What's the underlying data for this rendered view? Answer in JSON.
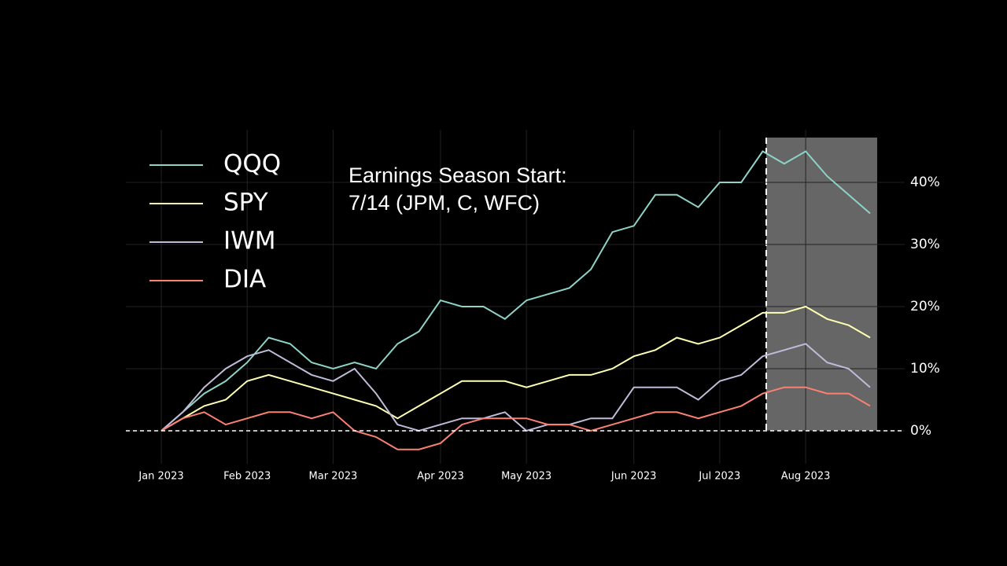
{
  "chart_data": {
    "type": "line",
    "annotation": [
      "Earnings Season Start:",
      "7/14 (JPM, C, WFC)"
    ],
    "categories": [
      "Jan 2023",
      null,
      null,
      null,
      "Feb 2023",
      null,
      null,
      null,
      "Mar 2023",
      null,
      null,
      null,
      null,
      "Apr 2023",
      null,
      null,
      null,
      "May 2023",
      null,
      null,
      null,
      null,
      "Jun 2023",
      null,
      null,
      null,
      "Jul 2023",
      null,
      null,
      null,
      "Aug 2023",
      null,
      null,
      null
    ],
    "series": [
      {
        "name": "QQQ",
        "color": "#8dd3c7",
        "values": [
          0,
          3,
          6,
          8,
          11,
          15,
          14,
          11,
          10,
          11,
          10,
          14,
          16,
          21,
          20,
          20,
          18,
          21,
          22,
          23,
          26,
          32,
          33,
          38,
          38,
          36,
          40,
          40,
          45,
          43,
          45,
          41,
          38,
          35
        ]
      },
      {
        "name": "SPY",
        "color": "#feffb3",
        "values": [
          0,
          2,
          4,
          5,
          8,
          9,
          8,
          7,
          6,
          5,
          4,
          2,
          4,
          6,
          8,
          8,
          8,
          7,
          8,
          9,
          9,
          10,
          12,
          13,
          15,
          14,
          15,
          17,
          19,
          19,
          20,
          18,
          17,
          15
        ]
      },
      {
        "name": "IWM",
        "color": "#bfbbd9",
        "values": [
          0,
          3,
          7,
          10,
          12,
          13,
          11,
          9,
          8,
          10,
          6,
          1,
          0,
          1,
          2,
          2,
          3,
          0,
          1,
          1,
          2,
          2,
          7,
          7,
          7,
          5,
          8,
          9,
          12,
          13,
          14,
          11,
          10,
          7
        ]
      },
      {
        "name": "DIA",
        "color": "#fa8174",
        "values": [
          0,
          2,
          3,
          1,
          2,
          3,
          3,
          2,
          3,
          0,
          -1,
          -3,
          -3,
          -2,
          1,
          2,
          2,
          2,
          1,
          1,
          0,
          1,
          2,
          3,
          3,
          2,
          3,
          4,
          6,
          7,
          7,
          6,
          6,
          4
        ]
      }
    ],
    "ylim": [
      -5,
      47
    ],
    "yticks": [
      {
        "value": 0,
        "label": "0%"
      },
      {
        "value": 10,
        "label": "10%"
      },
      {
        "value": 20,
        "label": "20%"
      },
      {
        "value": 30,
        "label": "30%"
      },
      {
        "value": 40,
        "label": "40%"
      }
    ],
    "grid": true
  }
}
